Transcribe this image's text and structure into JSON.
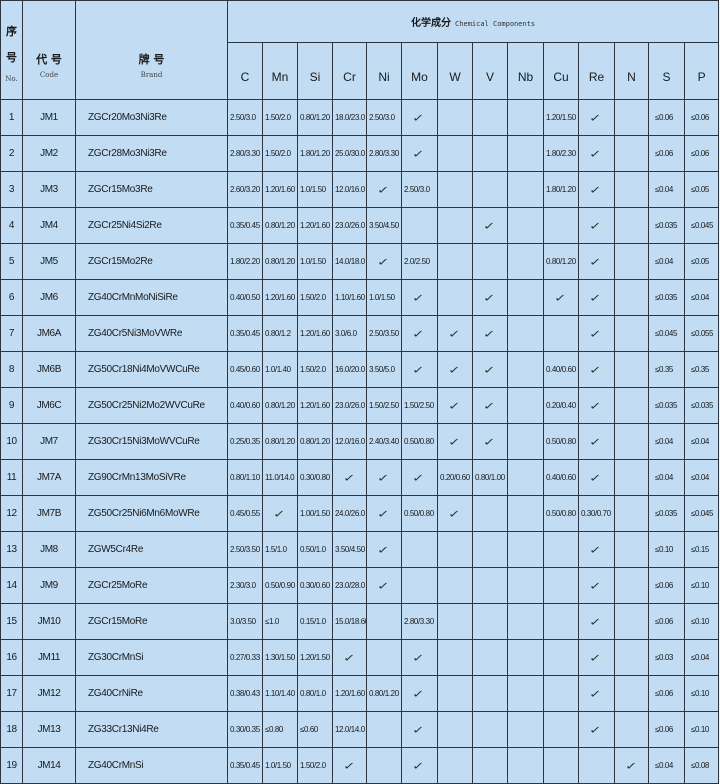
{
  "header": {
    "no_cn": "序号",
    "no_en": "No.",
    "code_cn": "代 号",
    "code_en": "Code",
    "brand_cn": "牌 号",
    "brand_en": "Brand",
    "chem_cn": "化学成分",
    "chem_en": "Chemical Components",
    "elements": [
      "C",
      "Mn",
      "Si",
      "Cr",
      "Ni",
      "Mo",
      "W",
      "V",
      "Nb",
      "Cu",
      "Re",
      "N",
      "S",
      "P"
    ]
  },
  "check_symbol": "✓",
  "colors": {
    "background": "#c2dcf4",
    "border": "#2d3540"
  },
  "rows": [
    {
      "no": "1",
      "code": "JM1",
      "brand": "ZGCr20Mo3Ni3Re",
      "values": [
        "2.50/3.0",
        "1.50/2.0",
        "0.80/1.20",
        "18.0/23.0",
        "2.50/3.0",
        "✓",
        "",
        "",
        "",
        "1.20/1.50",
        "✓",
        "",
        "≤0.06",
        "≤0.06"
      ]
    },
    {
      "no": "2",
      "code": "JM2",
      "brand": "ZGCr28Mo3Ni3Re",
      "values": [
        "2.80/3.30",
        "1.50/2.0",
        "1.80/1.20",
        "25.0/30.0",
        "2.80/3.30",
        "✓",
        "",
        "",
        "",
        "1.80/2.30",
        "✓",
        "",
        "≤0.06",
        "≤0.06"
      ]
    },
    {
      "no": "3",
      "code": "JM3",
      "brand": "ZGCr15Mo3Re",
      "values": [
        "2.60/3.20",
        "1.20/1.60",
        "1.0/1.50",
        "12.0/16.0",
        "✓",
        "2.50/3.0",
        "",
        "",
        "",
        "1.80/1.20",
        "✓",
        "",
        "≤0.04",
        "≤0.05"
      ]
    },
    {
      "no": "4",
      "code": "JM4",
      "brand": "ZGCr25Ni4Si2Re",
      "values": [
        "0.35/0.45",
        "0.80/1.20",
        "1.20/1.60",
        "23.0/26.0",
        "3.50/4.50",
        "",
        "",
        "✓",
        "",
        "",
        "✓",
        "",
        "≤0.035",
        "≤0.045"
      ]
    },
    {
      "no": "5",
      "code": "JM5",
      "brand": "ZGCr15Mo2Re",
      "values": [
        "1.80/2.20",
        "0.80/1.20",
        "1.0/1.50",
        "14.0/18.0",
        "✓",
        "2.0/2.50",
        "",
        "",
        "",
        "0.80/1.20",
        "✓",
        "",
        "≤0.04",
        "≤0.05"
      ]
    },
    {
      "no": "6",
      "code": "JM6",
      "brand": "ZG40CrMnMoNiSiRe",
      "values": [
        "0.40/0.50",
        "1.20/1.60",
        "1.50/2.0",
        "1.10/1.60",
        "1.0/1.50",
        "✓",
        "",
        "✓",
        "",
        "✓",
        "✓",
        "",
        "≤0.035",
        "≤0.04"
      ]
    },
    {
      "no": "7",
      "code": "JM6A",
      "brand": "ZG40Cr5Ni3MoVWRe",
      "values": [
        "0.35/0.45",
        "0.80/1.2",
        "1.20/1.60",
        "3.0/6.0",
        "2.50/3.50",
        "✓",
        "✓",
        "✓",
        "",
        "",
        "✓",
        "",
        "≤0.045",
        "≤0.055"
      ]
    },
    {
      "no": "8",
      "code": "JM6B",
      "brand": "ZG50Cr18Ni4MoVWCuRe",
      "values": [
        "0.45/0.60",
        "1.0/1.40",
        "1.50/2.0",
        "16.0/20.0",
        "3.50/5.0",
        "✓",
        "✓",
        "✓",
        "",
        "0.40/0.60",
        "✓",
        "",
        "≤0.35",
        "≤0.35"
      ]
    },
    {
      "no": "9",
      "code": "JM6C",
      "brand": "ZG50Cr25Ni2Mo2WVCuRe",
      "values": [
        "0.40/0.60",
        "0.80/1.20",
        "1.20/1.60",
        "23.0/26.0",
        "1.50/2.50",
        "1.50/2.50",
        "✓",
        "✓",
        "",
        "0.20/0.40",
        "✓",
        "",
        "≤0.035",
        "≤0.035"
      ]
    },
    {
      "no": "10",
      "code": "JM7",
      "brand": "ZG30Cr15Ni3MoWVCuRe",
      "values": [
        "0.25/0.35",
        "0.80/1.20",
        "0.80/1.20",
        "12.0/16.0",
        "2.40/3.40",
        "0.50/0.80",
        "✓",
        "✓",
        "",
        "0.50/0.80",
        "✓",
        "",
        "≤0.04",
        "≤0.04"
      ]
    },
    {
      "no": "11",
      "code": "JM7A",
      "brand": "ZG90CrMn13MoSiVRe",
      "values": [
        "0.80/1.10",
        "11.0/14.0",
        "0.30/0.80",
        "✓",
        "✓",
        "✓",
        "0.20/0.60",
        "0.80/1.00",
        "",
        "0.40/0.60",
        "✓",
        "",
        "≤0.04",
        "≤0.04"
      ]
    },
    {
      "no": "12",
      "code": "JM7B",
      "brand": "ZG50Cr25Ni6Mn6MoWRe",
      "values": [
        "0.45/0.55",
        "✓",
        "1.00/1.50",
        "24.0/26.0",
        "✓",
        "0.50/0.80",
        "✓",
        "",
        "",
        "0.50/0.80",
        "0.30/0.70",
        "",
        "≤0.035",
        "≤0.045"
      ]
    },
    {
      "no": "13",
      "code": "JM8",
      "brand": "ZGW5Cr4Re",
      "values": [
        "2.50/3.50",
        "1.5/1.0",
        "0.50/1.0",
        "3.50/4.50",
        "✓",
        "",
        "",
        "",
        "",
        "",
        "✓",
        "",
        "≤0.10",
        "≤0.15"
      ]
    },
    {
      "no": "14",
      "code": "JM9",
      "brand": "ZGCr25MoRe",
      "values": [
        "2.30/3.0",
        "0.50/0.90",
        "0.30/0.60",
        "23.0/28.0",
        "✓",
        "",
        "",
        "",
        "",
        "",
        "✓",
        "",
        "≤0.06",
        "≤0.10"
      ]
    },
    {
      "no": "15",
      "code": "JM10",
      "brand": "ZGCr15MoRe",
      "values": [
        "3.0/3.50",
        "≤1.0",
        "0.15/1.0",
        "15.0/18.60",
        "",
        "2.80/3.30",
        "",
        "",
        "",
        "",
        "✓",
        "",
        "≤0.06",
        "≤0.10"
      ]
    },
    {
      "no": "16",
      "code": "JM11",
      "brand": "ZG30CrMnSi",
      "values": [
        "0.27/0.33",
        "1.30/1.50",
        "1.20/1.50",
        "✓",
        "",
        "✓",
        "",
        "",
        "",
        "",
        "✓",
        "",
        "≤0.03",
        "≤0.04"
      ]
    },
    {
      "no": "17",
      "code": "JM12",
      "brand": "ZG40CrNiRe",
      "values": [
        "0.38/0.43",
        "1.10/1.40",
        "0.80/1.0",
        "1.20/1.60",
        "0.80/1.20",
        "✓",
        "",
        "",
        "",
        "",
        "✓",
        "",
        "≤0.06",
        "≤0.10"
      ]
    },
    {
      "no": "18",
      "code": "JM13",
      "brand": "ZG33Cr13Ni4Re",
      "values": [
        "0.30/0.35",
        "≤0.80",
        "≤0.60",
        "12.0/14.0",
        "",
        "✓",
        "",
        "",
        "",
        "",
        "✓",
        "",
        "≤0.06",
        "≤0.10"
      ]
    },
    {
      "no": "19",
      "code": "JM14",
      "brand": "ZG40CrMnSi",
      "values": [
        "0.35/0.45",
        "1.0/1.50",
        "1.50/2.0",
        "✓",
        "",
        "✓",
        "",
        "",
        "",
        "",
        "",
        "✓",
        "≤0.04",
        "≤0.08"
      ]
    }
  ]
}
